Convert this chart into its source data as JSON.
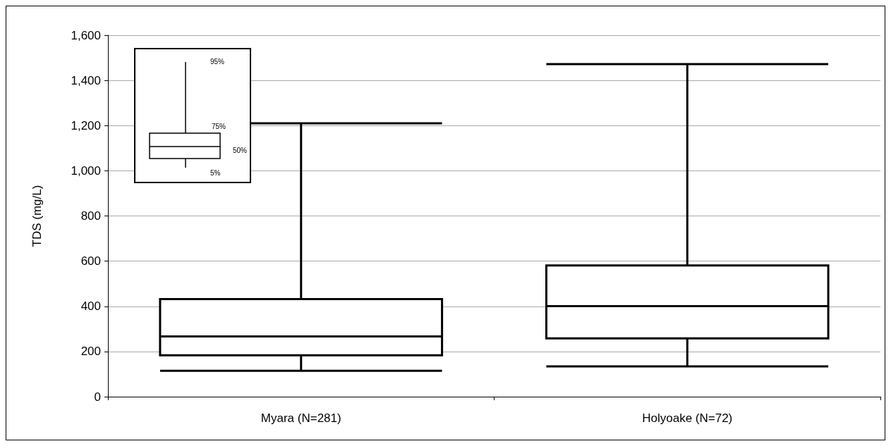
{
  "chart_data": {
    "type": "box",
    "ylabel": "TDS (mg/L)",
    "categories": [
      "Myara (N=281)",
      "Holyoake (N=72)"
    ],
    "boxes": [
      {
        "low": 115,
        "q1": 183,
        "median": 267,
        "q3": 432,
        "high": 1210
      },
      {
        "low": 134,
        "q1": 258,
        "median": 401,
        "q3": 581,
        "high": 1472
      }
    ],
    "color": "#000000",
    "ylim": [
      0,
      1600
    ],
    "yticks": [
      {
        "value": 0,
        "label": "0"
      },
      {
        "value": 200,
        "label": "200"
      },
      {
        "value": 400,
        "label": "400"
      },
      {
        "value": 600,
        "label": "600"
      },
      {
        "value": 800,
        "label": "800"
      },
      {
        "value": 1000,
        "label": "1,000"
      },
      {
        "value": 1200,
        "label": "1,200"
      },
      {
        "value": 1400,
        "label": "1,400"
      },
      {
        "value": 1600,
        "label": "1,600"
      }
    ],
    "grid": "y",
    "annotations": [
      "95%",
      "75%",
      "50%",
      "5%"
    ]
  }
}
